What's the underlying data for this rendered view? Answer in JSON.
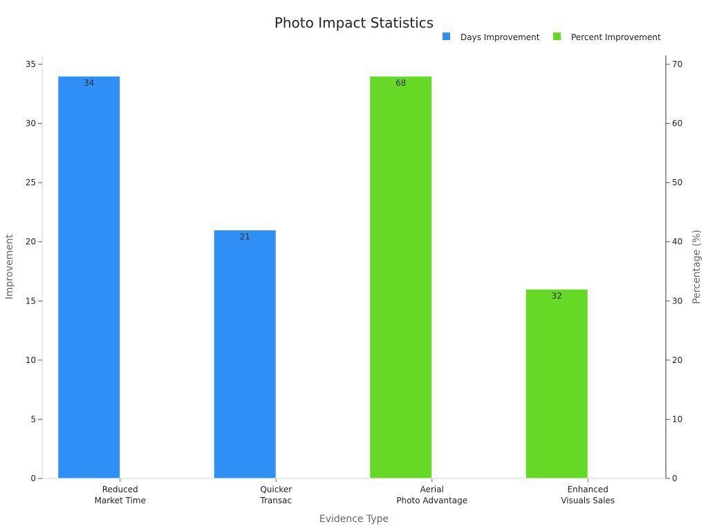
{
  "chart_data": {
    "type": "bar",
    "title": "Photo Impact Statistics",
    "xlabel": "Evidence Type",
    "ylabel": "Improvement",
    "y2label": "Percentage (%)",
    "categories": [
      [
        "Reduced",
        "Market Time"
      ],
      [
        "Quicker",
        "Transac"
      ],
      [
        "Aerial",
        "Photo Advantage"
      ],
      [
        "Enhanced",
        "Visuals Sales"
      ]
    ],
    "ylim": [
      0,
      35
    ],
    "y2lim": [
      0,
      70
    ],
    "yticks": [
      "0",
      "5",
      "10",
      "15",
      "20",
      "25",
      "30",
      "35"
    ],
    "y2ticks": [
      "0",
      "10",
      "20",
      "30",
      "40",
      "50",
      "60",
      "70"
    ],
    "legend_position": "top-right",
    "series": [
      {
        "name": "Days Improvement",
        "axis": "left",
        "color": "#2f8ff5",
        "values": [
          34,
          21,
          null,
          null
        ],
        "labels": [
          "34",
          "21",
          "",
          ""
        ]
      },
      {
        "name": "Percent Improvement",
        "axis": "right",
        "color": "#66d926",
        "values": [
          null,
          null,
          68,
          32
        ],
        "labels": [
          "",
          "",
          "68",
          "32"
        ]
      }
    ]
  }
}
